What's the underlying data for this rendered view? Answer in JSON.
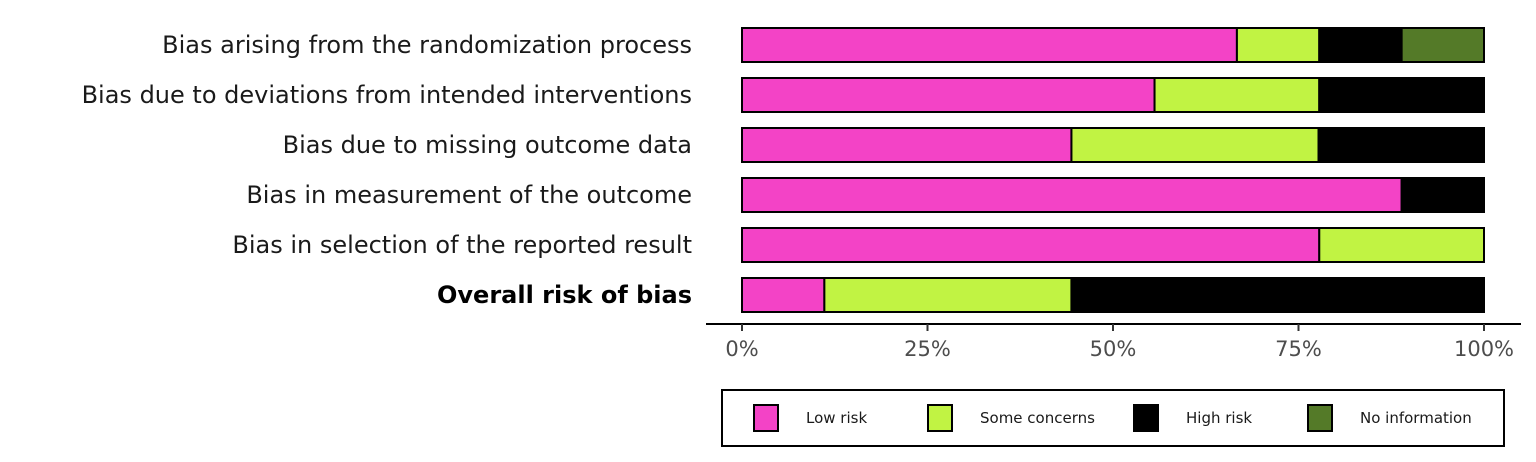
{
  "chart_data": {
    "type": "bar",
    "orientation": "horizontal",
    "stacked": true,
    "categories": [
      "Bias arising from the randomization process",
      "Bias due to deviations from intended interventions",
      "Bias due to missing outcome data",
      "Bias in measurement of the outcome",
      "Bias in selection of the reported result",
      "Overall risk of bias"
    ],
    "bold_categories": [
      "Overall risk of bias"
    ],
    "series": [
      {
        "name": "Low risk",
        "color": "#f343c6",
        "values": [
          66.7,
          55.6,
          44.4,
          88.9,
          77.8,
          11.1
        ]
      },
      {
        "name": "Some concerns",
        "color": "#c1f343",
        "values": [
          11.1,
          22.2,
          33.3,
          0,
          22.2,
          33.3
        ]
      },
      {
        "name": "High risk",
        "color": "#000000",
        "values": [
          11.1,
          22.2,
          22.3,
          11.1,
          0,
          55.6
        ]
      },
      {
        "name": "No information",
        "color": "#547a28",
        "values": [
          11.1,
          0,
          0,
          0,
          0,
          0
        ]
      }
    ],
    "xlim": [
      0,
      100
    ],
    "x_ticks": [
      "0%",
      "25%",
      "50%",
      "75%",
      "100%"
    ],
    "x_tick_values": [
      0,
      25,
      50,
      75,
      100
    ],
    "xlabel": "",
    "ylabel": "",
    "title": "",
    "grid": false,
    "legend_position": "bottom"
  }
}
